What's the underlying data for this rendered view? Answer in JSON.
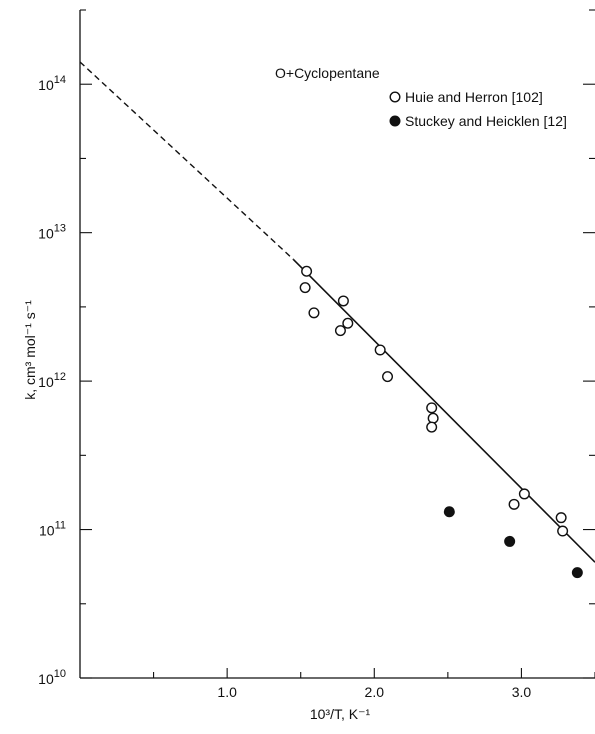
{
  "chart_data": {
    "type": "scatter",
    "title": "O+Cyclopentane",
    "xlabel": "10³/T, K⁻¹",
    "ylabel": "k, cm³ mol⁻¹ s⁻¹",
    "xlim": [
      0.0,
      3.5
    ],
    "ylim": [
      10,
      14.5
    ],
    "y_scale": "log10",
    "grid": false,
    "legend_position": "top-right",
    "x_ticks": [
      {
        "value": 1.0,
        "label": "1.0"
      },
      {
        "value": 2.0,
        "label": "2.0"
      },
      {
        "value": 3.0,
        "label": "3.0"
      }
    ],
    "y_ticks": [
      {
        "value": 10,
        "label": "10",
        "exp": "10"
      },
      {
        "value": 11,
        "label": "10",
        "exp": "11"
      },
      {
        "value": 12,
        "label": "10",
        "exp": "12"
      },
      {
        "value": 13,
        "label": "10",
        "exp": "13"
      },
      {
        "value": 14,
        "label": "10",
        "exp": "14"
      }
    ],
    "series": [
      {
        "name": "Huie and Herron [102]",
        "marker": "open-circle",
        "points": [
          [
            1.54,
            12.74
          ],
          [
            1.53,
            12.63
          ],
          [
            1.59,
            12.46
          ],
          [
            1.79,
            12.54
          ],
          [
            1.82,
            12.39
          ],
          [
            1.77,
            12.34
          ],
          [
            2.04,
            12.21
          ],
          [
            2.09,
            12.03
          ],
          [
            2.39,
            11.82
          ],
          [
            2.4,
            11.75
          ],
          [
            2.39,
            11.69
          ],
          [
            2.95,
            11.17
          ],
          [
            3.02,
            11.24
          ],
          [
            3.27,
            11.08
          ],
          [
            3.28,
            10.99
          ]
        ]
      },
      {
        "name": "Stuckey and Heicklen [12]",
        "marker": "filled-circle",
        "points": [
          [
            2.51,
            11.12
          ],
          [
            2.92,
            10.92
          ],
          [
            3.38,
            10.71
          ]
        ]
      }
    ],
    "fit_line": {
      "style": "solid",
      "from": [
        1.45,
        12.82
      ],
      "to": [
        3.5,
        10.78
      ]
    },
    "extrapolation": {
      "style": "dashed",
      "from": [
        0.0,
        14.15
      ],
      "to": [
        1.45,
        12.82
      ]
    },
    "marker_color": "#111111"
  }
}
